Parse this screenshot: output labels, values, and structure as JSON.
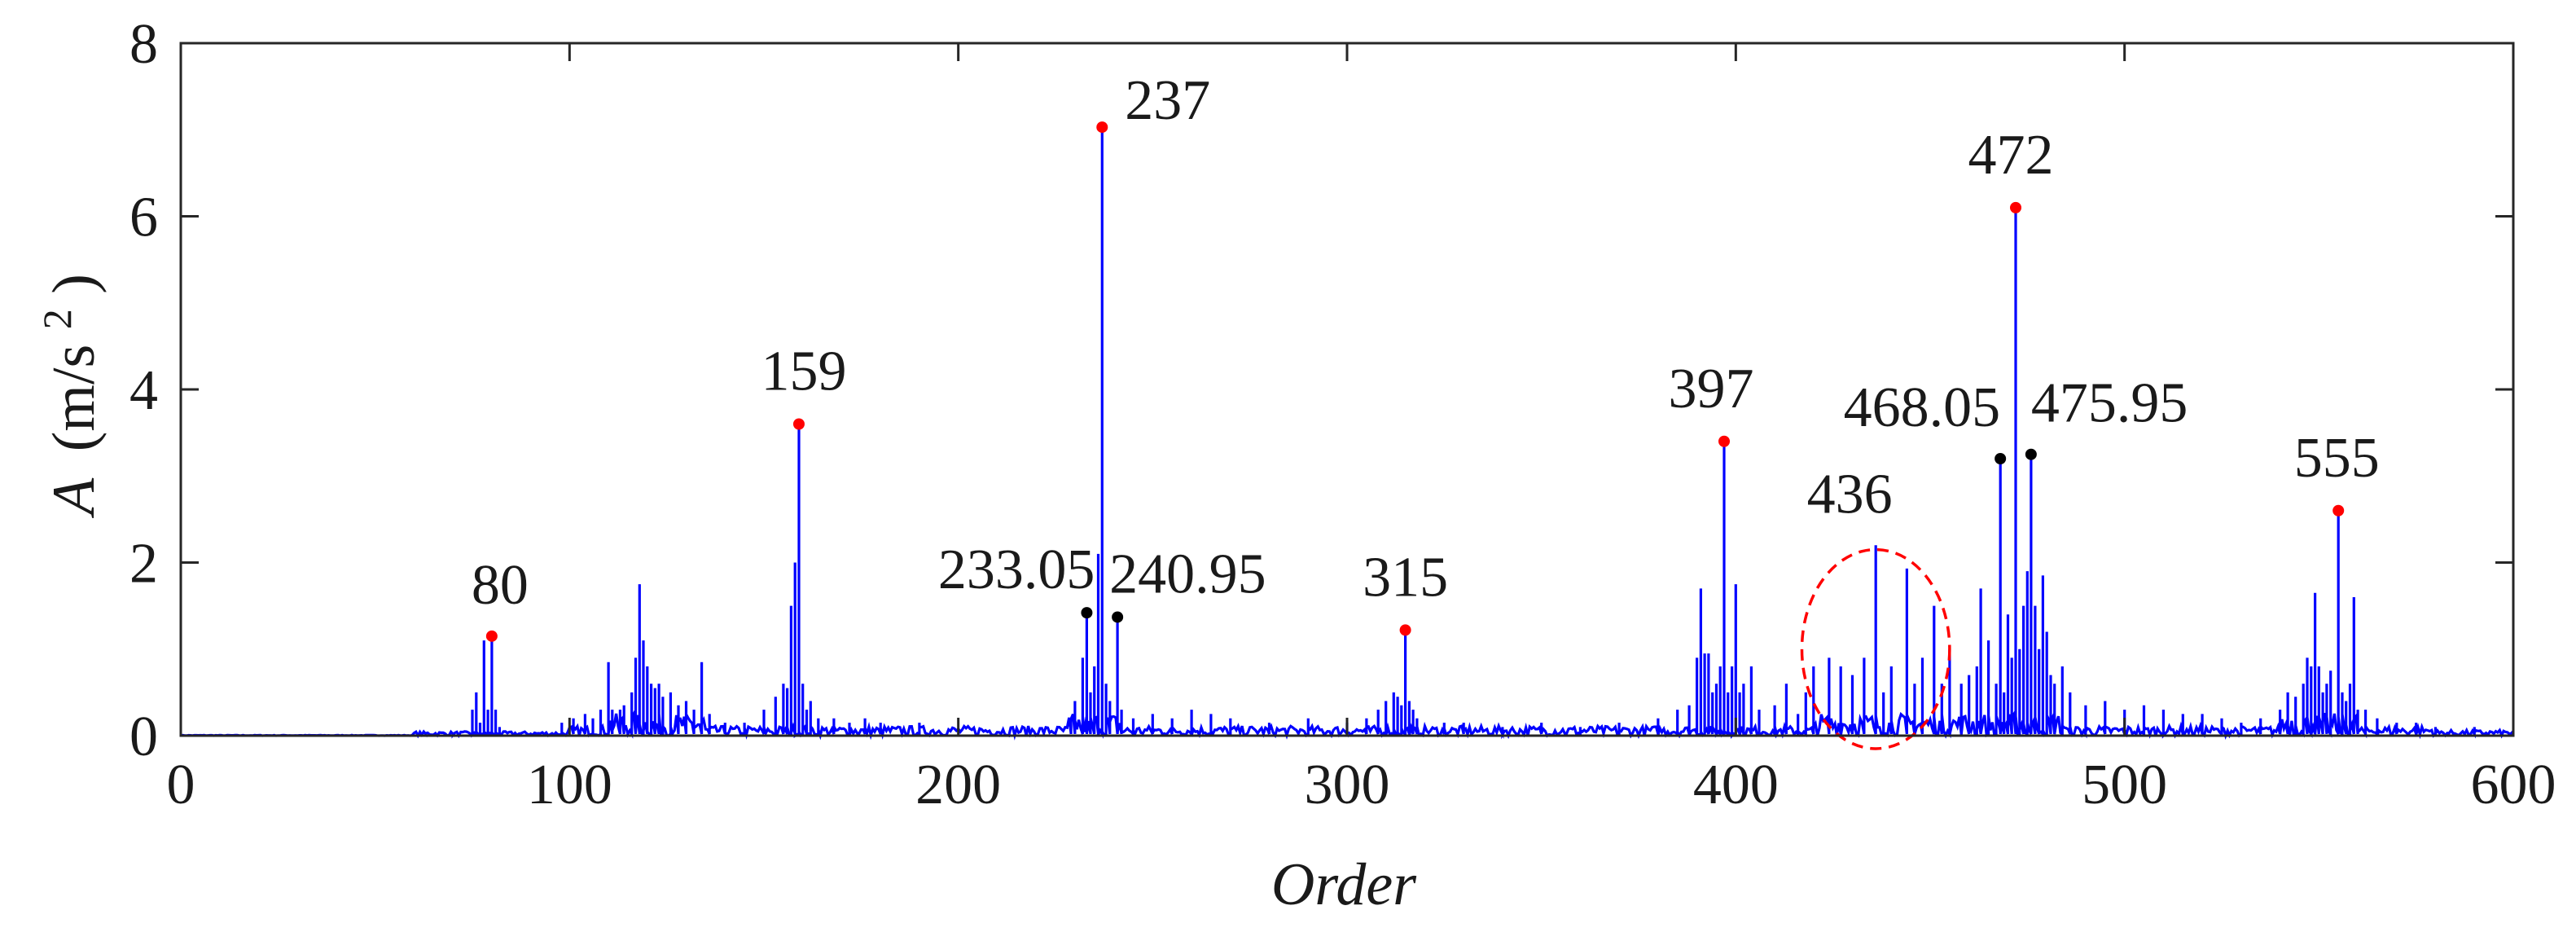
{
  "chart_data": {
    "type": "line",
    "xlabel": "Order",
    "ylabel_italic": "A",
    "ylabel_unit_pre": "(m/s",
    "ylabel_unit_sup": "2",
    "ylabel_unit_post": ")",
    "xlim": [
      0,
      600
    ],
    "ylim": [
      0,
      8
    ],
    "xticks": [
      "0",
      "100",
      "200",
      "300",
      "400",
      "500",
      "600"
    ],
    "yticks": [
      "0",
      "2",
      "4",
      "6",
      "8"
    ],
    "grid": false,
    "line_color": "#0000ff",
    "spectrum_peaks": [
      [
        63,
        0.03
      ],
      [
        70,
        0.04
      ],
      [
        75,
        0.3
      ],
      [
        76,
        0.5
      ],
      [
        77,
        0.15
      ],
      [
        78,
        1.1
      ],
      [
        79,
        0.3
      ],
      [
        80,
        1.15
      ],
      [
        81,
        0.3
      ],
      [
        82,
        0.1
      ],
      [
        98,
        0.15
      ],
      [
        101,
        0.2
      ],
      [
        104,
        0.25
      ],
      [
        106,
        0.2
      ],
      [
        108,
        0.3
      ],
      [
        110,
        0.85
      ],
      [
        111,
        0.3
      ],
      [
        113,
        0.3
      ],
      [
        114,
        0.35
      ],
      [
        116,
        0.5
      ],
      [
        117,
        0.9
      ],
      [
        118,
        1.75
      ],
      [
        119,
        1.1
      ],
      [
        120,
        0.8
      ],
      [
        121,
        0.6
      ],
      [
        122,
        0.55
      ],
      [
        123,
        0.6
      ],
      [
        124,
        0.45
      ],
      [
        126,
        0.5
      ],
      [
        128,
        0.35
      ],
      [
        130,
        0.4
      ],
      [
        132,
        0.3
      ],
      [
        134,
        0.85
      ],
      [
        136,
        0.25
      ],
      [
        140,
        0.15
      ],
      [
        145,
        0.15
      ],
      [
        150,
        0.3
      ],
      [
        153,
        0.45
      ],
      [
        155,
        0.6
      ],
      [
        156,
        0.55
      ],
      [
        157,
        1.5
      ],
      [
        158,
        2.0
      ],
      [
        159,
        3.6
      ],
      [
        160,
        0.6
      ],
      [
        161,
        0.3
      ],
      [
        162,
        0.4
      ],
      [
        164,
        0.2
      ],
      [
        168,
        0.2
      ],
      [
        172,
        0.15
      ],
      [
        176,
        0.2
      ],
      [
        180,
        0.15
      ],
      [
        190,
        0.15
      ],
      [
        229,
        0.2
      ],
      [
        230,
        0.4
      ],
      [
        232,
        0.9
      ],
      [
        233.05,
        1.42
      ],
      [
        234,
        0.5
      ],
      [
        235,
        0.8
      ],
      [
        236,
        2.1
      ],
      [
        237,
        7.03
      ],
      [
        238,
        0.6
      ],
      [
        239,
        0.4
      ],
      [
        240.95,
        1.37
      ],
      [
        242,
        0.3
      ],
      [
        245,
        0.2
      ],
      [
        250,
        0.25
      ],
      [
        255,
        0.2
      ],
      [
        260,
        0.3
      ],
      [
        265,
        0.25
      ],
      [
        270,
        0.2
      ],
      [
        280,
        0.15
      ],
      [
        290,
        0.2
      ],
      [
        300,
        0.15
      ],
      [
        305,
        0.2
      ],
      [
        308,
        0.3
      ],
      [
        310,
        0.4
      ],
      [
        312,
        0.5
      ],
      [
        313,
        0.45
      ],
      [
        314,
        0.35
      ],
      [
        315,
        1.22
      ],
      [
        316,
        0.4
      ],
      [
        317,
        0.3
      ],
      [
        318,
        0.2
      ],
      [
        325,
        0.15
      ],
      [
        330,
        0.15
      ],
      [
        340,
        0.1
      ],
      [
        350,
        0.15
      ],
      [
        360,
        0.1
      ],
      [
        370,
        0.15
      ],
      [
        380,
        0.2
      ],
      [
        385,
        0.3
      ],
      [
        388,
        0.35
      ],
      [
        390,
        0.9
      ],
      [
        391,
        1.7
      ],
      [
        392,
        0.95
      ],
      [
        393,
        0.95
      ],
      [
        394,
        0.5
      ],
      [
        395,
        0.6
      ],
      [
        396,
        0.8
      ],
      [
        397,
        3.4
      ],
      [
        398,
        0.5
      ],
      [
        399,
        0.8
      ],
      [
        400,
        1.75
      ],
      [
        401,
        0.5
      ],
      [
        402,
        0.6
      ],
      [
        404,
        0.8
      ],
      [
        406,
        0.3
      ],
      [
        410,
        0.35
      ],
      [
        413,
        0.6
      ],
      [
        416,
        0.25
      ],
      [
        418,
        0.5
      ],
      [
        420,
        0.8
      ],
      [
        424,
        0.9
      ],
      [
        427,
        0.8
      ],
      [
        430,
        0.7
      ],
      [
        433,
        0.9
      ],
      [
        436,
        2.2
      ],
      [
        438,
        0.5
      ],
      [
        440,
        0.8
      ],
      [
        444,
        1.93
      ],
      [
        446,
        0.6
      ],
      [
        448,
        0.9
      ],
      [
        451,
        1.5
      ],
      [
        453,
        0.6
      ],
      [
        455,
        1.0
      ],
      [
        458,
        0.6
      ],
      [
        460,
        0.7
      ],
      [
        462,
        0.8
      ],
      [
        463,
        1.7
      ],
      [
        465,
        1.1
      ],
      [
        467,
        0.6
      ],
      [
        468.05,
        3.2
      ],
      [
        469,
        0.5
      ],
      [
        470,
        1.4
      ],
      [
        471,
        0.9
      ],
      [
        472,
        6.1
      ],
      [
        473,
        1.0
      ],
      [
        474,
        1.5
      ],
      [
        475,
        1.9
      ],
      [
        475.95,
        3.25
      ],
      [
        477,
        1.5
      ],
      [
        478,
        1.0
      ],
      [
        479,
        1.85
      ],
      [
        480,
        1.2
      ],
      [
        481,
        0.7
      ],
      [
        482,
        0.6
      ],
      [
        484,
        0.8
      ],
      [
        486,
        0.5
      ],
      [
        490,
        0.35
      ],
      [
        495,
        0.4
      ],
      [
        500,
        0.3
      ],
      [
        505,
        0.35
      ],
      [
        510,
        0.3
      ],
      [
        515,
        0.25
      ],
      [
        520,
        0.25
      ],
      [
        525,
        0.2
      ],
      [
        530,
        0.15
      ],
      [
        535,
        0.2
      ],
      [
        540,
        0.3
      ],
      [
        542,
        0.5
      ],
      [
        544,
        0.45
      ],
      [
        546,
        0.6
      ],
      [
        547,
        0.9
      ],
      [
        548,
        0.8
      ],
      [
        549,
        1.65
      ],
      [
        550,
        0.8
      ],
      [
        551,
        0.5
      ],
      [
        552,
        0.6
      ],
      [
        553,
        0.75
      ],
      [
        555,
        2.6
      ],
      [
        556,
        0.5
      ],
      [
        557,
        0.4
      ],
      [
        558,
        0.6
      ],
      [
        559,
        1.6
      ],
      [
        560,
        0.3
      ],
      [
        562,
        0.3
      ],
      [
        565,
        0.2
      ],
      [
        570,
        0.15
      ],
      [
        575,
        0.15
      ],
      [
        580,
        0.1
      ],
      [
        590,
        0.1
      ]
    ],
    "annotations": [
      {
        "label": "80",
        "x": 80,
        "y": 1.15,
        "marker": "red"
      },
      {
        "label": "159",
        "x": 159,
        "y": 3.6,
        "marker": "red"
      },
      {
        "label": "233.05",
        "x": 233.05,
        "y": 1.42,
        "marker": "black"
      },
      {
        "label": "237",
        "x": 237,
        "y": 7.03,
        "marker": "red"
      },
      {
        "label": "240.95",
        "x": 240.95,
        "y": 1.37,
        "marker": "black"
      },
      {
        "label": "315",
        "x": 315,
        "y": 1.22,
        "marker": "red"
      },
      {
        "label": "397",
        "x": 397,
        "y": 3.4,
        "marker": "red"
      },
      {
        "label": "436",
        "x": 436,
        "y": 2.2,
        "marker": "none"
      },
      {
        "label": "468.05",
        "x": 468.05,
        "y": 3.2,
        "marker": "black"
      },
      {
        "label": "472",
        "x": 472,
        "y": 6.1,
        "marker": "red"
      },
      {
        "label": "475.95",
        "x": 475.95,
        "y": 3.25,
        "marker": "black"
      },
      {
        "label": "555",
        "x": 555,
        "y": 2.6,
        "marker": "red"
      }
    ],
    "highlight_region": {
      "x_center": 436,
      "x_radius": 19,
      "y_center": 1.0,
      "y_radius": 1.15,
      "style": "dashed",
      "color": "#ff0000"
    },
    "marker_colors": {
      "red": "#ff0000",
      "black": "#000000"
    }
  }
}
